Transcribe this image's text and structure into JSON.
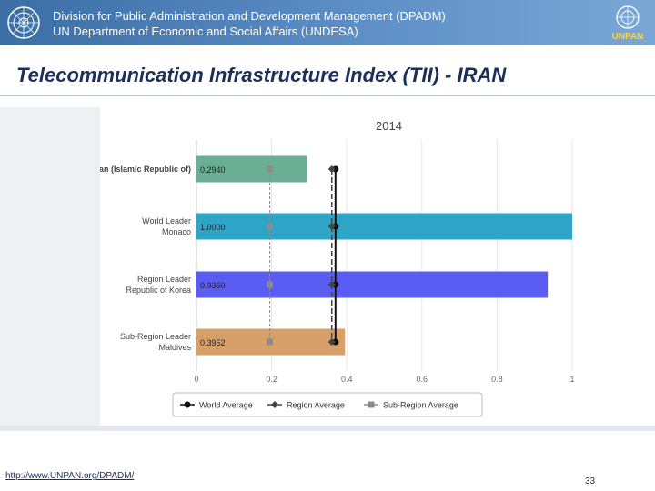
{
  "header": {
    "line1": "Division for Public Administration and Development Management (DPADM)",
    "line2": "UN Department of Economic and Social Affairs (UNDESA)",
    "logo_text": "UNPAN"
  },
  "slide": {
    "title": "Telecommunication Infrastructure Index (TII) - IRAN"
  },
  "footer": {
    "link": "http://www.UNPAN.org/DPADM/",
    "page_number": "33"
  },
  "colors": {
    "header_blue": "#3c6ea6",
    "title_navy": "#1a2f5a"
  },
  "chart_data": {
    "type": "bar",
    "orientation": "horizontal",
    "title": "2014",
    "categories": [
      [
        "Iran (Islamic Republic of)"
      ],
      [
        "World Leader",
        "Monaco"
      ],
      [
        "Region Leader",
        "Republic of Korea"
      ],
      [
        "Sub-Region Leader",
        "Maldives"
      ]
    ],
    "values": [
      0.294,
      1.0,
      0.935,
      0.3952
    ],
    "value_labels": [
      "0.2940",
      "1.0000",
      "0.9350",
      "0.3952"
    ],
    "bar_colors": [
      "#6aae95",
      "#2ea5c7",
      "#5b5cf4",
      "#d7a068"
    ],
    "xlim": [
      0,
      1
    ],
    "xticks": [
      0,
      0.2,
      0.4,
      0.6,
      0.8,
      1
    ],
    "xtick_labels": [
      "0",
      "0.2",
      "0.4",
      "0.6",
      "0.8",
      "1"
    ],
    "reference_lines": [
      {
        "name": "World Average",
        "value": 0.37,
        "color": "#111111",
        "marker": "circle"
      },
      {
        "name": "Region Average",
        "value": 0.365,
        "color": "#444444",
        "marker": "diamond"
      },
      {
        "name": "Sub-Region Average",
        "value": 0.195,
        "color": "#8c8c8c",
        "marker": "square"
      }
    ],
    "legend": [
      "World Average",
      "Region Average",
      "Sub-Region Average"
    ],
    "legend_position": "bottom",
    "grid": true
  }
}
